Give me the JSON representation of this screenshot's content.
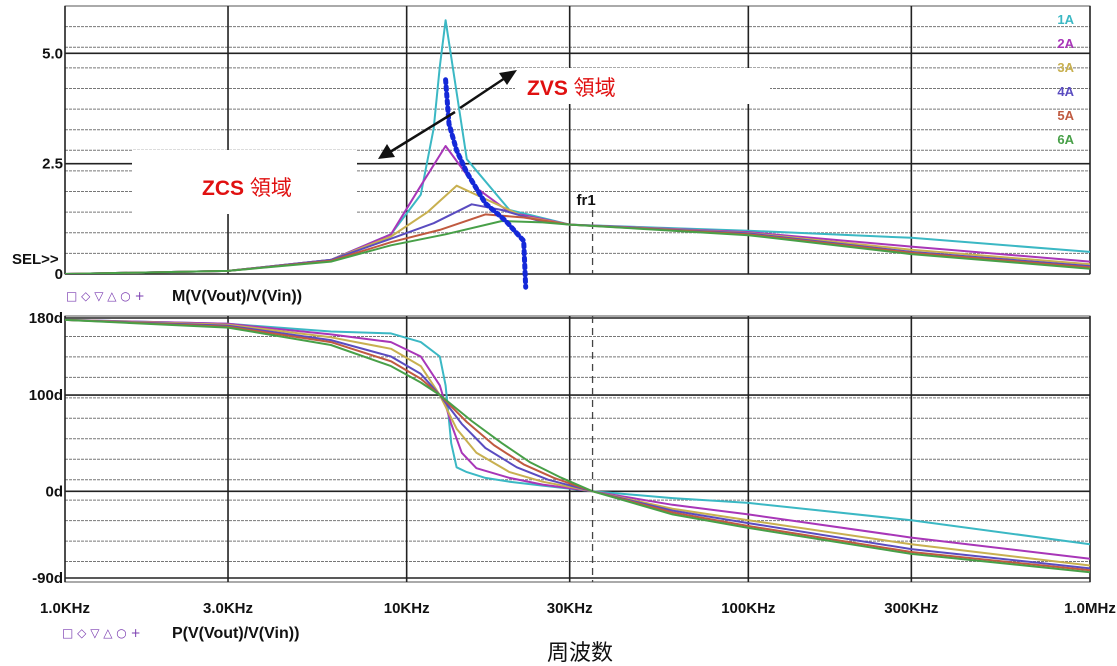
{
  "chart_data": [
    {
      "type": "line",
      "title": "",
      "trace_label": "M(V(Vout)/V(Vin))",
      "marker_symbols": "□ ◇ ▽ △ ○ +",
      "xscale": "log",
      "xlim": [
        1000,
        1000000
      ],
      "ylim": [
        0,
        5.8
      ],
      "y_ticks": [
        {
          "v": 0,
          "label": "0"
        },
        {
          "v": 2.5,
          "label": "2.5"
        },
        {
          "v": 5.0,
          "label": "5.0"
        }
      ],
      "sel_label": "SEL>>",
      "legend_position": "top-right",
      "series": [
        {
          "name": "1A",
          "color": "#3bb8c4",
          "x": [
            1000,
            3000,
            6000,
            9000,
            11000,
            12000,
            12500,
            13000,
            15000,
            20000,
            30000,
            100000,
            300000,
            1000000
          ],
          "y": [
            0.0,
            0.07,
            0.32,
            0.9,
            1.8,
            3.3,
            4.7,
            5.75,
            2.6,
            1.45,
            1.12,
            0.98,
            0.82,
            0.5
          ]
        },
        {
          "name": "2A",
          "color": "#a836b8",
          "x": [
            1000,
            3000,
            6000,
            9000,
            11000,
            13000,
            16000,
            20000,
            30000,
            100000,
            300000,
            1000000
          ],
          "y": [
            0.0,
            0.07,
            0.32,
            0.9,
            2.0,
            2.9,
            1.95,
            1.4,
            1.12,
            0.95,
            0.62,
            0.28
          ]
        },
        {
          "name": "3A",
          "color": "#c8b050",
          "x": [
            1000,
            3000,
            6000,
            9000,
            11500,
            14000,
            17000,
            22000,
            30000,
            100000,
            300000,
            1000000
          ],
          "y": [
            0.0,
            0.07,
            0.32,
            0.85,
            1.4,
            2.0,
            1.7,
            1.3,
            1.12,
            0.93,
            0.55,
            0.22
          ]
        },
        {
          "name": "4A",
          "color": "#5a4cc0",
          "x": [
            1000,
            3000,
            6000,
            9000,
            12000,
            15500,
            19000,
            24000,
            30000,
            100000,
            300000,
            1000000
          ],
          "y": [
            0.0,
            0.07,
            0.32,
            0.8,
            1.15,
            1.58,
            1.45,
            1.22,
            1.12,
            0.92,
            0.5,
            0.18
          ]
        },
        {
          "name": "5A",
          "color": "#c05a40",
          "x": [
            1000,
            3000,
            6000,
            9000,
            12500,
            17000,
            22000,
            30000,
            100000,
            300000,
            1000000
          ],
          "y": [
            0.0,
            0.07,
            0.3,
            0.72,
            1.0,
            1.35,
            1.28,
            1.12,
            0.9,
            0.48,
            0.15
          ]
        },
        {
          "name": "6A",
          "color": "#48a048",
          "x": [
            1000,
            3000,
            6000,
            9000,
            13000,
            19000,
            25000,
            30000,
            100000,
            300000,
            1000000
          ],
          "y": [
            0.0,
            0.07,
            0.28,
            0.65,
            0.9,
            1.2,
            1.17,
            1.12,
            0.88,
            0.45,
            0.12
          ]
        }
      ],
      "peak_locus": {
        "color": "#1428d8",
        "x": [
          13000,
          13300,
          14000,
          15000,
          17000,
          19500,
          22000,
          22300
        ],
        "y": [
          4.4,
          3.4,
          2.8,
          2.3,
          1.6,
          1.2,
          0.75,
          -0.3
        ]
      },
      "annotations": {
        "zvs": {
          "bold": "ZVS",
          "text": " 領域"
        },
        "zcs": {
          "bold": "ZCS",
          "text": " 領域"
        },
        "fr1": {
          "label": "fr1",
          "x": 35000
        }
      }
    },
    {
      "type": "line",
      "title": "",
      "trace_label": "P(V(Vout)/V(Vin))",
      "marker_symbols": "□ ◇ ▽ △ ○ +",
      "xscale": "log",
      "xlim": [
        1000,
        1000000
      ],
      "ylim": [
        -90,
        180
      ],
      "y_ticks": [
        {
          "v": -90,
          "label": "-90d"
        },
        {
          "v": 0,
          "label": "0d"
        },
        {
          "v": 100,
          "label": "100d"
        },
        {
          "v": 180,
          "label": "180d"
        }
      ],
      "x_ticks": [
        {
          "v": 1000,
          "label": "1.0KHz"
        },
        {
          "v": 3000,
          "label": "3.0KHz"
        },
        {
          "v": 10000,
          "label": "10KHz"
        },
        {
          "v": 30000,
          "label": "30KHz"
        },
        {
          "v": 100000,
          "label": "100KHz"
        },
        {
          "v": 300000,
          "label": "300KHz"
        },
        {
          "v": 1000000,
          "label": "1.0MHz"
        }
      ],
      "xlabel": "周波数",
      "series": [
        {
          "name": "1A",
          "color": "#3bb8c4",
          "x": [
            1000,
            3000,
            6000,
            9000,
            11000,
            12500,
            13000,
            13500,
            14000,
            15000,
            17000,
            20000,
            25000,
            35000,
            60000,
            100000,
            300000,
            1000000
          ],
          "y": [
            178,
            174,
            166,
            164,
            155,
            140,
            110,
            50,
            25,
            20,
            14,
            10,
            6,
            0,
            -7,
            -12,
            -30,
            -55
          ]
        },
        {
          "name": "2A",
          "color": "#a836b8",
          "x": [
            1000,
            3000,
            6000,
            9000,
            11000,
            12500,
            13500,
            14500,
            16000,
            20000,
            25000,
            35000,
            60000,
            100000,
            300000,
            1000000
          ],
          "y": [
            178,
            174,
            163,
            155,
            140,
            110,
            70,
            40,
            24,
            14,
            7,
            0,
            -14,
            -24,
            -48,
            -70
          ]
        },
        {
          "name": "3A",
          "color": "#c8b050",
          "x": [
            1000,
            3000,
            6000,
            9000,
            11000,
            12500,
            14000,
            16000,
            20000,
            25000,
            35000,
            60000,
            100000,
            300000,
            1000000
          ],
          "y": [
            178,
            173,
            160,
            148,
            130,
            100,
            65,
            40,
            20,
            10,
            0,
            -18,
            -30,
            -55,
            -77
          ]
        },
        {
          "name": "4A",
          "color": "#5a4cc0",
          "x": [
            1000,
            3000,
            6000,
            9000,
            11000,
            12500,
            14500,
            17000,
            21000,
            26000,
            35000,
            60000,
            100000,
            300000,
            1000000
          ],
          "y": [
            178,
            172,
            157,
            140,
            122,
            100,
            70,
            45,
            25,
            12,
            0,
            -20,
            -33,
            -60,
            -80
          ]
        },
        {
          "name": "5A",
          "color": "#c05a40",
          "x": [
            1000,
            3000,
            6000,
            9000,
            11000,
            12500,
            15000,
            18000,
            22000,
            27000,
            35000,
            60000,
            100000,
            300000,
            1000000
          ],
          "y": [
            178,
            171,
            155,
            135,
            117,
            100,
            72,
            48,
            28,
            14,
            0,
            -22,
            -36,
            -63,
            -82
          ]
        },
        {
          "name": "6A",
          "color": "#48a048",
          "x": [
            1000,
            3000,
            6000,
            9000,
            11000,
            12500,
            15500,
            19000,
            23000,
            28000,
            35000,
            60000,
            100000,
            300000,
            1000000
          ],
          "y": [
            178,
            170,
            152,
            130,
            113,
            100,
            73,
            50,
            30,
            15,
            0,
            -24,
            -38,
            -65,
            -84
          ]
        }
      ]
    }
  ]
}
